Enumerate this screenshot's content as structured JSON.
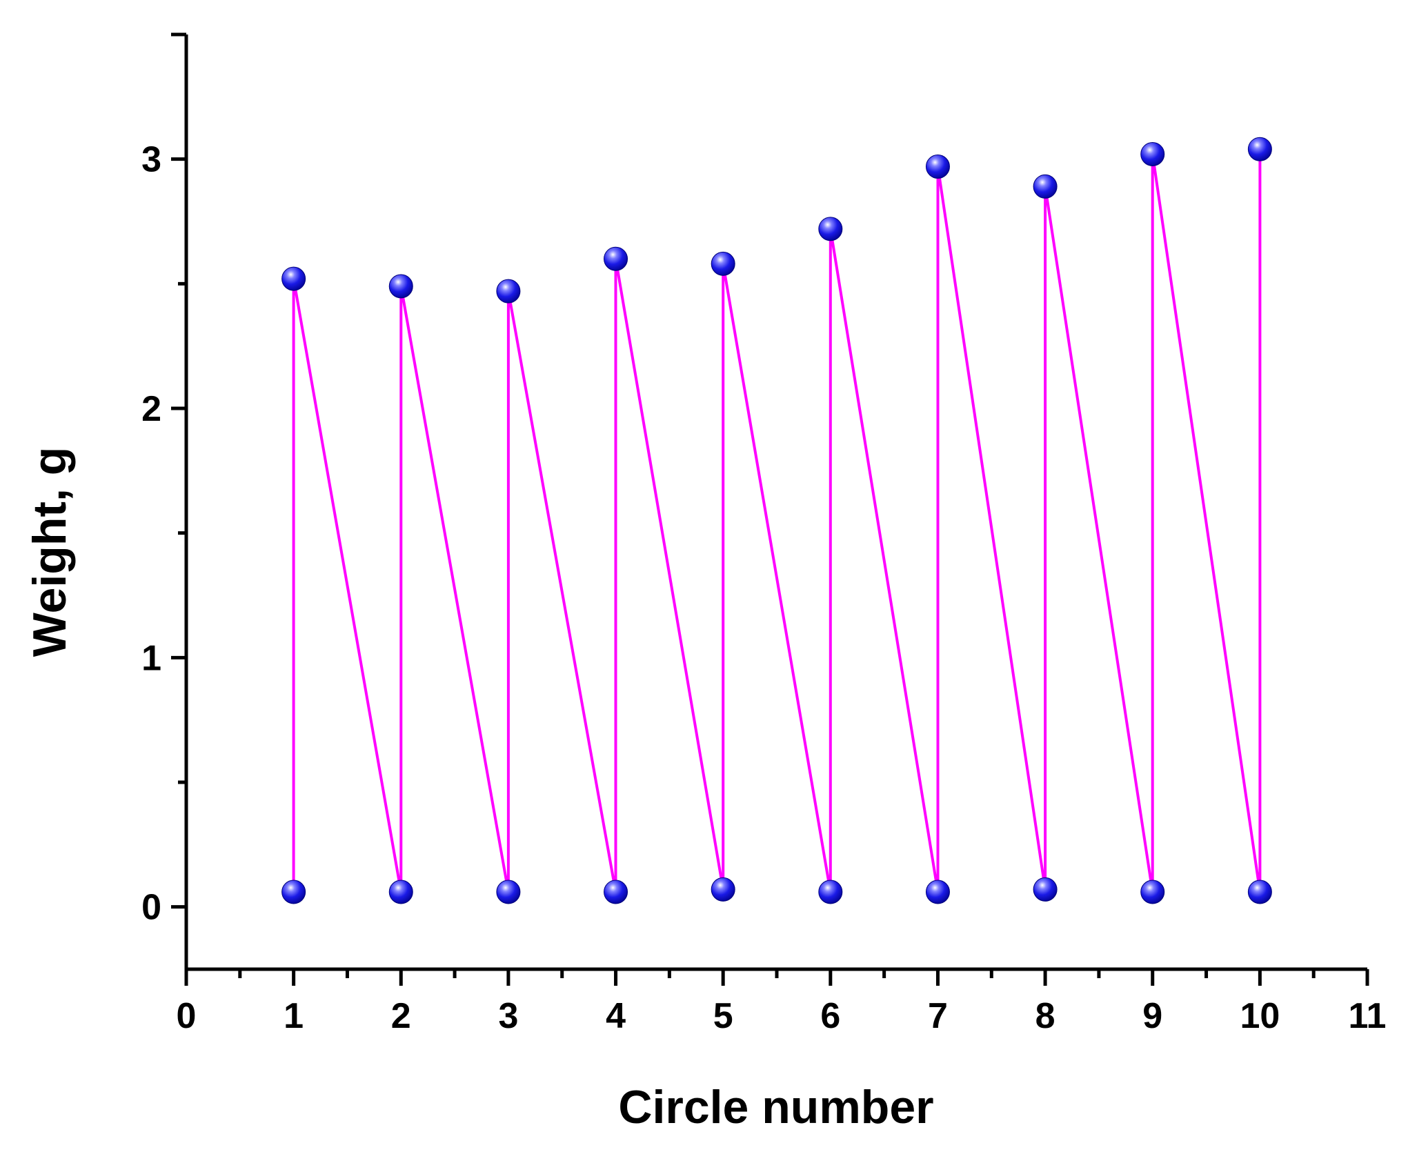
{
  "chart_data": {
    "type": "line",
    "title": "",
    "xlabel": "Circle number",
    "ylabel": "Weight, g",
    "xlim": [
      0,
      11
    ],
    "ylim": [
      -0.25,
      3.5
    ],
    "x_ticks": [
      0,
      1,
      2,
      3,
      4,
      5,
      6,
      7,
      8,
      9,
      10,
      11
    ],
    "x_tick_labels": [
      "0",
      "1",
      "2",
      "3",
      "4",
      "5",
      "6",
      "7",
      "8",
      "9",
      "10",
      "11"
    ],
    "y_ticks": [
      0,
      1,
      2,
      3
    ],
    "y_tick_labels": [
      "0",
      "1",
      "2",
      "3"
    ],
    "grid": false,
    "legend": "none",
    "line_color": "#ff00ff",
    "marker_color": "#1010e0",
    "series": [
      {
        "points": [
          {
            "x": 1,
            "y": 0.06
          },
          {
            "x": 1,
            "y": 2.52
          },
          {
            "x": 2,
            "y": 0.06
          },
          {
            "x": 2,
            "y": 2.49
          },
          {
            "x": 3,
            "y": 0.06
          },
          {
            "x": 3,
            "y": 2.47
          },
          {
            "x": 4,
            "y": 0.06
          },
          {
            "x": 4,
            "y": 2.6
          },
          {
            "x": 5,
            "y": 0.07
          },
          {
            "x": 5,
            "y": 2.58
          },
          {
            "x": 6,
            "y": 0.06
          },
          {
            "x": 6,
            "y": 2.72
          },
          {
            "x": 7,
            "y": 0.06
          },
          {
            "x": 7,
            "y": 2.97
          },
          {
            "x": 8,
            "y": 0.07
          },
          {
            "x": 8,
            "y": 2.89
          },
          {
            "x": 9,
            "y": 0.06
          },
          {
            "x": 9,
            "y": 3.02
          },
          {
            "x": 10,
            "y": 0.06
          },
          {
            "x": 10,
            "y": 3.04
          }
        ]
      }
    ]
  }
}
